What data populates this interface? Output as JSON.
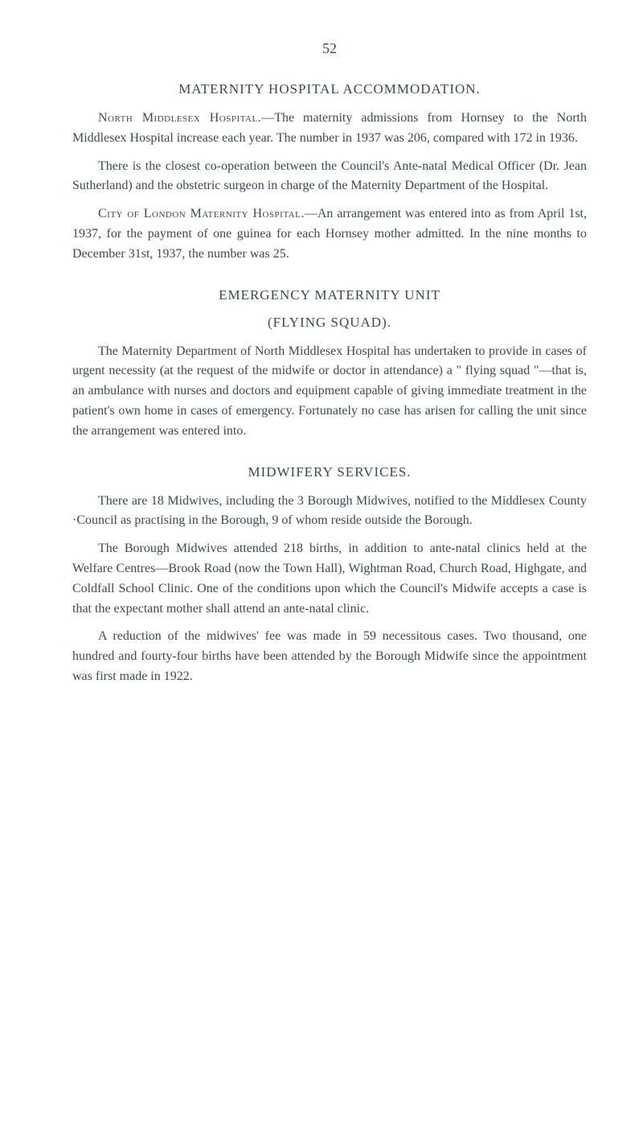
{
  "pageNumber": "52",
  "sections": [
    {
      "heading": "MATERNITY HOSPITAL ACCOMMODATION.",
      "paragraphs": [
        {
          "lead": "North Middlesex Hospital.",
          "text": "—The maternity admissions from Hornsey to the North Middlesex Hospital increase each year. The number in 1937 was 206, compared with 172 in 1936."
        },
        {
          "lead": "",
          "text": "There is the closest co-operation between the Council's Ante-natal Medical Officer (Dr. Jean Sutherland) and the obstetric surgeon in charge of the Maternity Department of the Hospital."
        },
        {
          "lead": "City of London Maternity Hospital.",
          "text": "—An arrangement was entered into as from April 1st, 1937, for the payment of one guinea for each Hornsey mother admitted. In the nine months to December 31st, 1937, the number was 25."
        }
      ]
    },
    {
      "heading": "EMERGENCY MATERNITY UNIT",
      "subheading": "(FLYING SQUAD).",
      "paragraphs": [
        {
          "lead": "",
          "text": "The Maternity Department of North Middlesex Hospital has undertaken to provide in cases of urgent necessity (at the request of the midwife or doctor in attendance) a \" flying squad \"—that is, an ambulance with nurses and doctors and equipment capable of giving immediate treatment in the patient's own home in cases of emergency. Fortunately no case has arisen for calling the unit since the arrangement was entered into."
        }
      ]
    },
    {
      "heading": "MIDWIFERY SERVICES.",
      "paragraphs": [
        {
          "lead": "",
          "text": "There are 18 Midwives, including the 3 Borough Midwives, notified to the Middlesex County ·Council as practising in the Borough, 9 of whom reside outside the Borough."
        },
        {
          "lead": "",
          "text": "The Borough Midwives attended 218 births, in addition to ante-natal clinics held at the Welfare Centres—Brook Road (now the Town Hall), Wightman Road, Church Road, Highgate, and Coldfall School Clinic. One of the conditions upon which the Council's Midwife accepts a case is that the expectant mother shall attend an ante-natal clinic."
        },
        {
          "lead": "",
          "text": "A reduction of the midwives' fee was made in 59 necessitous cases. Two thousand, one hundred and fourty-four births have been attended by the Borough Midwife since the appointment was first made in 1922."
        }
      ]
    }
  ]
}
